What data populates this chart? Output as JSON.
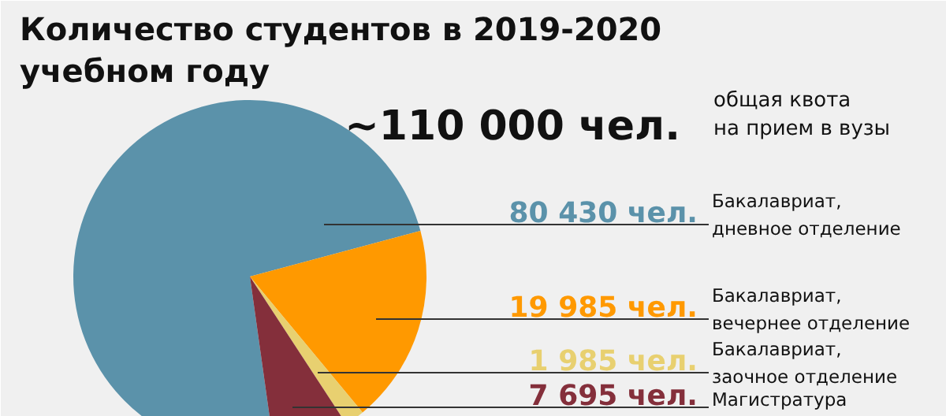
{
  "chart_data": {
    "type": "pie",
    "title": "Количество студентов в 2019-2020\nучебном году",
    "categories": [
      "Бакалавриат,\nдневное отделение",
      "Бакалавриат,\nвечернее отделение",
      "Бакалавриат,\nзаочное отделение",
      "Магистратура"
    ],
    "values": [
      80430,
      19985,
      1985,
      7695
    ],
    "value_labels": [
      "80 430 чел.",
      "19 985 чел.",
      "1 985 чел.",
      "7 695 чел."
    ],
    "colors": [
      "#5b92aa",
      "#ff9900",
      "#e8d070",
      "#842f3b"
    ],
    "annotations": [
      "~110 000  чел.",
      "общая квота\nна прием в вузы"
    ]
  }
}
